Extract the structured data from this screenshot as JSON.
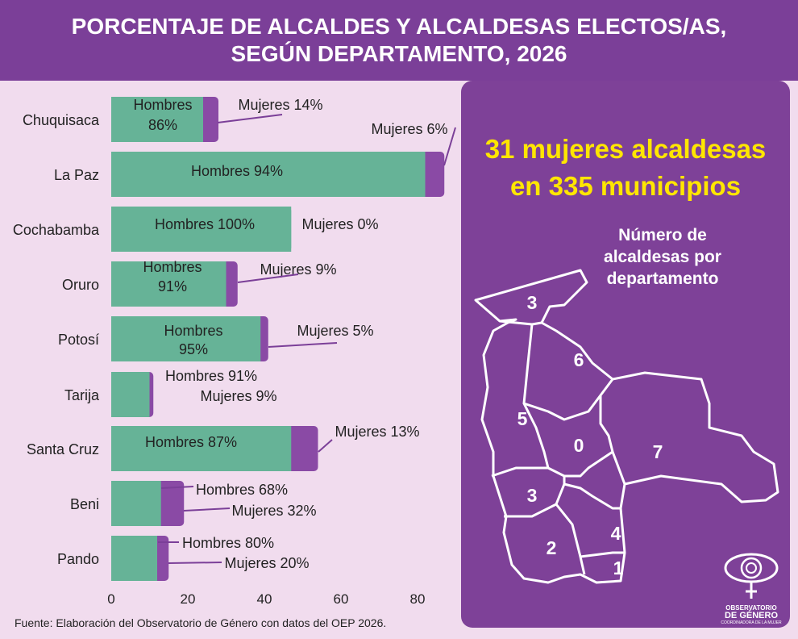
{
  "title": [
    "PORCENTAJE DE ALCALDES Y ALCALDESAS ELECTOS/AS,",
    "SEGÚN DEPARTAMENTO, 2026"
  ],
  "colors": {
    "header": "#7b3f98",
    "background": "#f1dcee",
    "hombres": "#66b397",
    "mujeres": "#8a4aa5",
    "highlight": "#ffe600"
  },
  "chart_data": {
    "type": "bar",
    "orientation": "horizontal",
    "stacked": true,
    "categories": [
      "Chuquisaca",
      "La Paz",
      "Cochabamba",
      "Oruro",
      "Potosí",
      "Tarija",
      "Santa Cruz",
      "Beni",
      "Pando"
    ],
    "series": [
      {
        "name": "Hombres",
        "values": [
          24,
          82,
          47,
          30,
          39,
          10,
          47,
          13,
          12
        ]
      },
      {
        "name": "Mujeres",
        "values": [
          4,
          5,
          0,
          3,
          2,
          1,
          7,
          6,
          3
        ]
      }
    ],
    "data_labels": {
      "hombres": [
        "Hombres 86%",
        "Hombres 94%",
        "Hombres 100%",
        "Hombres 91%",
        "Hombres 95%",
        "Hombres 91%",
        "Hombres 87%",
        "Hombres 68%",
        "Hombres 80%"
      ],
      "mujeres": [
        "Mujeres 14%",
        "Mujeres 6%",
        "Mujeres 0%",
        "Mujeres 9%",
        "Mujeres 5%",
        "Mujeres 9%",
        "Mujeres 13%",
        "Mujeres 32%",
        "Mujeres 20%"
      ]
    },
    "xlim": [
      0,
      90
    ],
    "xticks": [
      0,
      20,
      40,
      60,
      80
    ],
    "grid": false
  },
  "panel": {
    "headline": [
      "31 mujeres alcaldesas",
      "en 335 municipios"
    ],
    "map_title": [
      "Número de",
      "alcaldesas por",
      "departamento"
    ],
    "map_values": {
      "Pando": "3",
      "Beni": "6",
      "La Paz": "5",
      "Cochabamba": "0",
      "Santa Cruz": "7",
      "Oruro": "3",
      "Potosí": "2",
      "Chuquisaca": "4",
      "Tarija": "1"
    },
    "logo": {
      "line1": "OBSERVATORIO",
      "line2": "DE GÉNERO",
      "line3": "COORDINADORA DE LA MUJER"
    }
  },
  "source": "Fuente: Elaboración del Observatorio de Género con datos del OEP 2026."
}
